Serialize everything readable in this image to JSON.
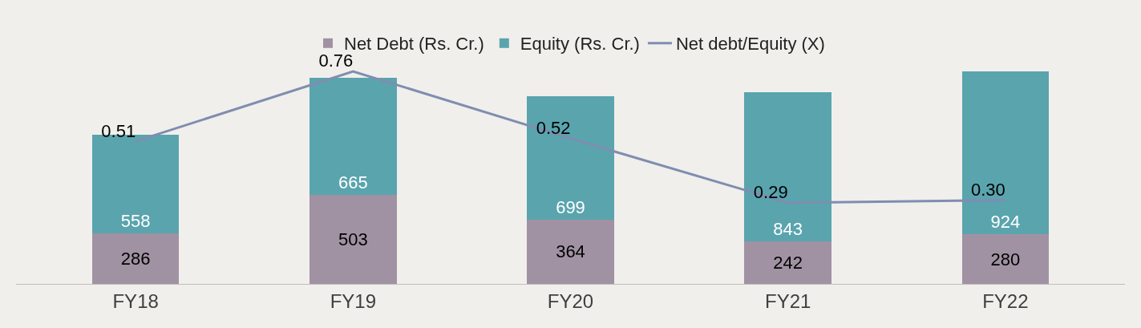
{
  "chart_data": {
    "type": "bar",
    "stacked": true,
    "categories": [
      "FY18",
      "FY19",
      "FY20",
      "FY21",
      "FY22"
    ],
    "series": [
      {
        "name": "Net Debt (Rs. Cr.)",
        "color": "#a092a3",
        "values": [
          286,
          503,
          364,
          242,
          280
        ]
      },
      {
        "name": "Equity (Rs. Cr.)",
        "color": "#5aa4ae",
        "values": [
          558,
          665,
          699,
          843,
          924
        ]
      },
      {
        "name": "Net debt/Equity (X)",
        "type": "line",
        "axis": "y2",
        "color": "#7f8db0",
        "values": [
          0.51,
          0.76,
          0.52,
          0.29,
          0.3
        ],
        "value_labels": [
          "0.51",
          "0.76",
          "0.52",
          "0.29",
          "0.30"
        ]
      }
    ],
    "tick_labels": "x",
    "data_labels": true,
    "legend": "top",
    "grid": false
  }
}
